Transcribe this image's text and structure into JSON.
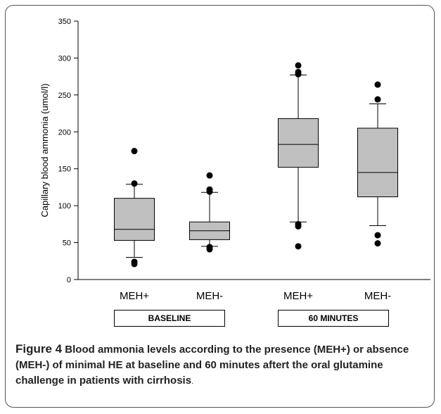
{
  "chart_data": {
    "type": "box",
    "ylabel": "Capillary blood ammonia (umol/l)",
    "ylim": [
      0,
      350
    ],
    "yticks": [
      0,
      50,
      100,
      150,
      200,
      250,
      300,
      350
    ],
    "categories": [
      "MEH+",
      "MEH-",
      "MEH+",
      "MEH-"
    ],
    "groups": [
      {
        "label": "BASELINE",
        "categories": [
          0,
          1
        ]
      },
      {
        "label": "60 MINUTES",
        "categories": [
          2,
          3
        ]
      }
    ],
    "boxes": [
      {
        "whisker_low": 30,
        "q1": 53,
        "median": 68,
        "q3": 110,
        "whisker_high": 129,
        "outliers": [
          21,
          24,
          130,
          174
        ]
      },
      {
        "whisker_low": 45,
        "q1": 54,
        "median": 66,
        "q3": 78,
        "whisker_high": 118,
        "outliers": [
          41,
          44,
          119,
          122,
          141
        ]
      },
      {
        "whisker_low": 78,
        "q1": 152,
        "median": 183,
        "q3": 218,
        "whisker_high": 277,
        "outliers": [
          45,
          72,
          75,
          278,
          281,
          290
        ]
      },
      {
        "whisker_low": 73,
        "q1": 112,
        "median": 145,
        "q3": 205,
        "whisker_high": 238,
        "outliers": [
          49,
          60,
          244,
          264
        ]
      }
    ],
    "colors": {
      "box_fill": "#c0c0c0",
      "stroke": "#000000",
      "outlier": "#000000"
    }
  },
  "caption": {
    "lead": "Figure 4",
    "body": "Blood ammonia levels according to the presence (MEH+) or absence (MEH-) of minimal HE at baseline and 60 minutes aftert the oral glutamine challenge in patients with cirrhosis",
    "end": "."
  }
}
